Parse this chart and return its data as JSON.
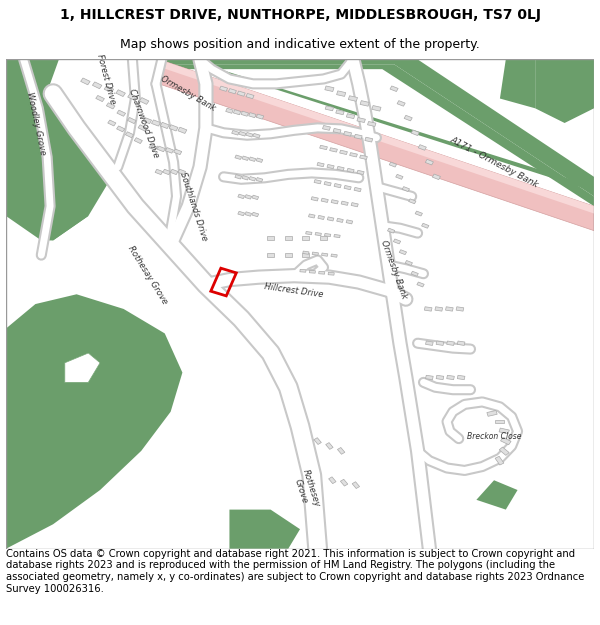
{
  "title_line1": "1, HILLCREST DRIVE, NUNTHORPE, MIDDLESBROUGH, TS7 0LJ",
  "title_line2": "Map shows position and indicative extent of the property.",
  "footer_text": "Contains OS data © Crown copyright and database right 2021. This information is subject to Crown copyright and database rights 2023 and is reproduced with the permission of HM Land Registry. The polygons (including the associated geometry, namely x, y co-ordinates) are subject to Crown copyright and database rights 2023 Ordnance Survey 100026316.",
  "title_fontsize": 10,
  "subtitle_fontsize": 9,
  "footer_fontsize": 7.2,
  "bg_color": "#ffffff",
  "map_bg": "#ffffff",
  "road_color": "#ffffff",
  "road_outline": "#c8c8c8",
  "building_color": "#e0e0e0",
  "building_outline": "#aaaaaa",
  "green_color": "#6b9e6b",
  "highlight_color": "#dd0000",
  "a171_pink": "#f0c0c0",
  "a171_green": "#6b9e6b",
  "map_border": "#999999",
  "label_color": "#333333",
  "label_fs": 6.0,
  "a171_label_fs": 6.5
}
